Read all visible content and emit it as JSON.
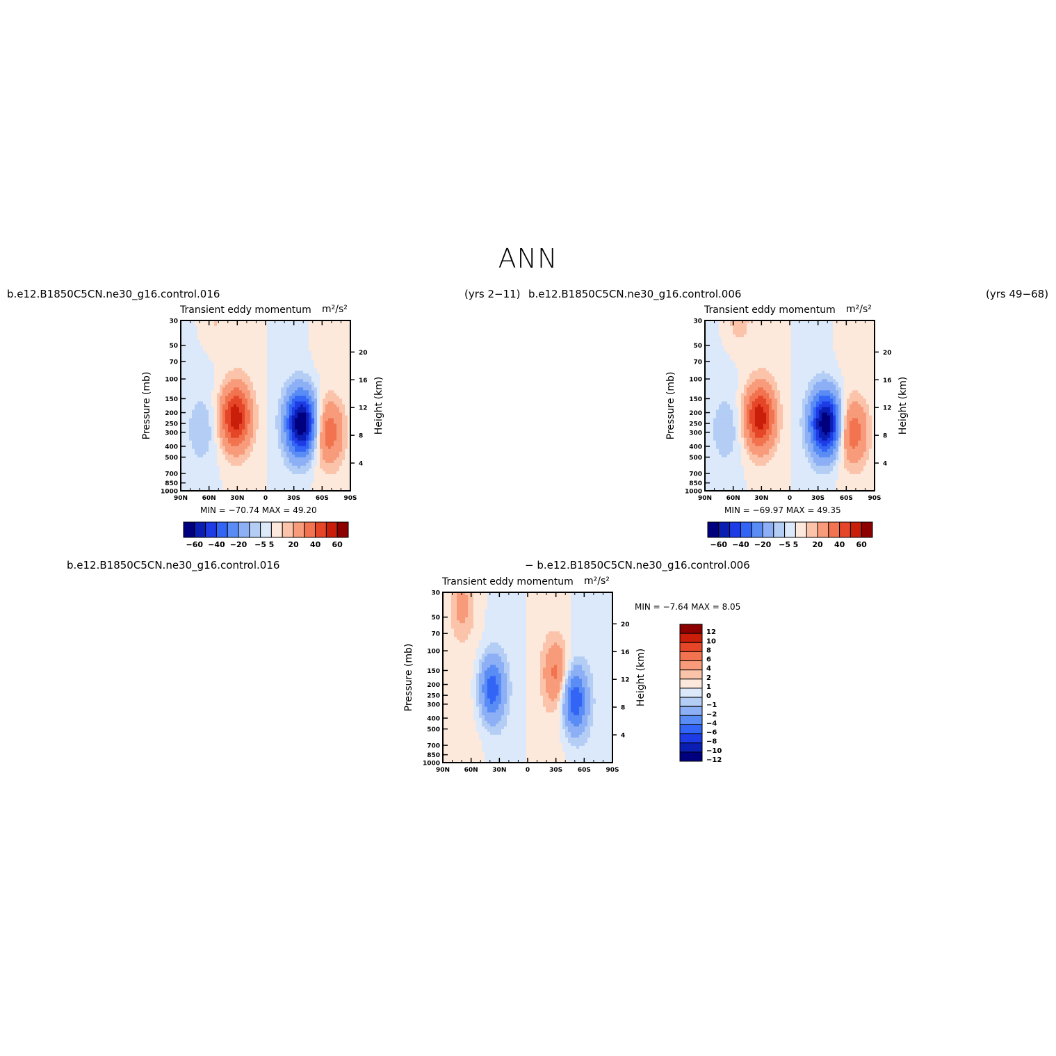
{
  "page_title": "ANN",
  "panels": [
    {
      "case_left": "b.e12.B1850C5CN.ne30_g16.control.016",
      "case_right": "(yrs 2−11)",
      "header_left": "Transient eddy momentum",
      "header_right": "m²/s²",
      "stats": "MIN = −70.74   MAX =   49.20"
    },
    {
      "case_left": "b.e12.B1850C5CN.ne30_g16.control.006",
      "case_right": "(yrs 49−68)",
      "header_left": "Transient eddy momentum",
      "header_right": "m²/s²",
      "stats": "MIN = −69.97   MAX =   49.35"
    },
    {
      "case_left": "b.e12.B1850C5CN.ne30_g16.control.016",
      "case_right": "− b.e12.B1850C5CN.ne30_g16.control.006",
      "header_left": "Transient eddy momentum",
      "header_right": "m²/s²",
      "stats": "MIN =   −7.64   MAX =    8.05"
    }
  ],
  "chart_data": [
    {
      "type": "heatmap",
      "title": "Transient eddy momentum",
      "units": "m²/s²",
      "ylabel": "Pressure (mb)",
      "y2label": "Height (km)",
      "x_ticks": [
        "90N",
        "60N",
        "30N",
        "0",
        "30S",
        "60S",
        "90S"
      ],
      "y_ticks": [
        "30",
        "50",
        "70",
        "100",
        "150",
        "200",
        "250",
        "300",
        "400",
        "500",
        "700",
        "850",
        "1000"
      ],
      "y2_ticks": [
        "20",
        "16",
        "12",
        "8",
        "4"
      ],
      "min": -70.74,
      "max": 49.2,
      "levels": [
        -60,
        -50,
        -40,
        -30,
        -20,
        -10,
        -5,
        0,
        5,
        10,
        20,
        30,
        40,
        50,
        60
      ],
      "colorbar_labels": [
        "−60",
        "−40",
        "−20",
        "−5",
        "5",
        "20",
        "40",
        "60"
      ],
      "features": [
        {
          "lat": 32,
          "p": 220,
          "value": 45
        },
        {
          "lat": -38,
          "p": 250,
          "value": -70
        },
        {
          "lat": -67,
          "p": 300,
          "value": 25
        },
        {
          "lat": 68,
          "p": 280,
          "value": -8
        },
        {
          "lat": 55,
          "p": 30,
          "value": 6
        }
      ]
    },
    {
      "type": "heatmap",
      "title": "Transient eddy momentum",
      "units": "m²/s²",
      "ylabel": "Pressure (mb)",
      "y2label": "Height (km)",
      "x_ticks": [
        "90N",
        "60N",
        "30N",
        "0",
        "30S",
        "60S",
        "90S"
      ],
      "y_ticks": [
        "30",
        "50",
        "70",
        "100",
        "150",
        "200",
        "250",
        "300",
        "400",
        "500",
        "700",
        "850",
        "1000"
      ],
      "y2_ticks": [
        "20",
        "16",
        "12",
        "8",
        "4"
      ],
      "min": -69.97,
      "max": 49.35,
      "levels": [
        -60,
        -50,
        -40,
        -30,
        -20,
        -10,
        -5,
        0,
        5,
        10,
        20,
        30,
        40,
        50,
        60
      ],
      "colorbar_labels": [
        "−60",
        "−40",
        "−20",
        "−5",
        "5",
        "20",
        "40",
        "60"
      ],
      "features": [
        {
          "lat": 32,
          "p": 220,
          "value": 45
        },
        {
          "lat": -38,
          "p": 250,
          "value": -68
        },
        {
          "lat": -67,
          "p": 300,
          "value": 25
        },
        {
          "lat": 68,
          "p": 280,
          "value": -8
        },
        {
          "lat": 55,
          "p": 30,
          "value": 8
        }
      ]
    },
    {
      "type": "heatmap",
      "title": "Transient eddy momentum",
      "units": "m²/s²",
      "ylabel": "Pressure (mb)",
      "y2label": "Height (km)",
      "x_ticks": [
        "90N",
        "60N",
        "30N",
        "0",
        "30S",
        "60S",
        "90S"
      ],
      "y_ticks": [
        "30",
        "50",
        "70",
        "100",
        "150",
        "200",
        "250",
        "300",
        "400",
        "500",
        "700",
        "850",
        "1000"
      ],
      "y2_ticks": [
        "20",
        "16",
        "12",
        "8",
        "4"
      ],
      "min": -7.64,
      "max": 8.05,
      "levels": [
        -12,
        -10,
        -8,
        -6,
        -4,
        -2,
        -1,
        0,
        1,
        2,
        4,
        6,
        8,
        10,
        12
      ],
      "colorbar_labels": [
        "12",
        "10",
        "8",
        "6",
        "4",
        "2",
        "1",
        "0",
        "−1",
        "−2",
        "−4",
        "−6",
        "−8",
        "−10",
        "−12"
      ],
      "features": [
        {
          "lat": 38,
          "p": 220,
          "value": -7
        },
        {
          "lat": -50,
          "p": 280,
          "value": -7.5
        },
        {
          "lat": -30,
          "p": 160,
          "value": 4
        },
        {
          "lat": 70,
          "p": 40,
          "value": 2
        }
      ]
    }
  ],
  "colors": {
    "blue_to_red": [
      "#00007f",
      "#0a1eb4",
      "#1e3ce6",
      "#3264f5",
      "#5a8cf5",
      "#8caff5",
      "#b4cdf5",
      "#dce9fa",
      "#fde9dc",
      "#fbc3aa",
      "#f79b7a",
      "#f2734f",
      "#e64628",
      "#c81e0a",
      "#8c0000"
    ]
  }
}
